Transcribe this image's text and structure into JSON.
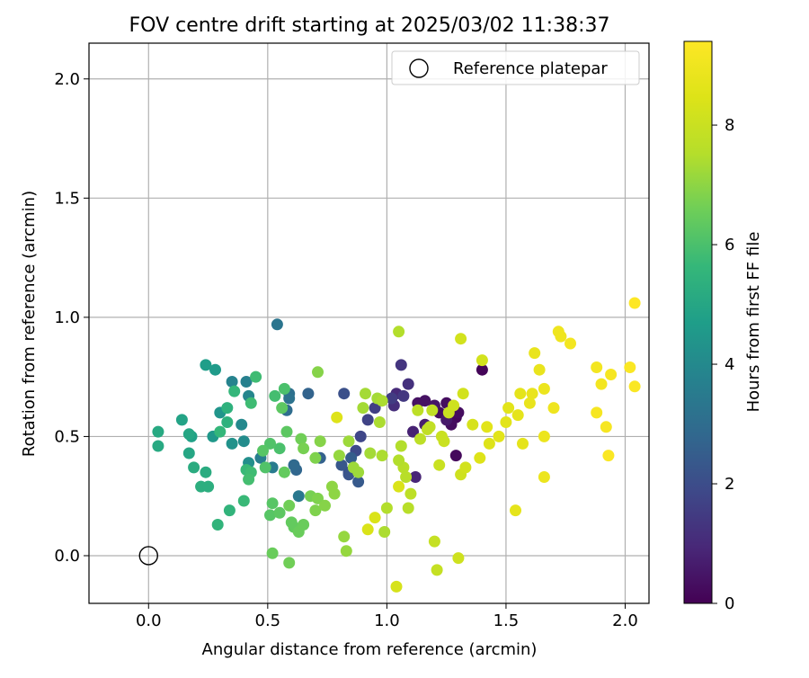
{
  "chart_data": {
    "type": "scatter",
    "title": "FOV centre drift starting at 2025/03/02 11:38:37",
    "xlabel": "Angular distance from reference (arcmin)",
    "ylabel": "Rotation from reference (arcmin)",
    "xlim": [
      -0.25,
      2.1
    ],
    "ylim": [
      -0.2,
      2.15
    ],
    "x_ticks": [
      "0.0",
      "0.5",
      "1.0",
      "1.5",
      "2.0"
    ],
    "y_ticks": [
      "0.0",
      "0.5",
      "1.0",
      "1.5",
      "2.0"
    ],
    "grid": true,
    "legend": {
      "placement": "top-right",
      "entries": [
        "Reference platepar"
      ]
    },
    "reference": {
      "label": "Reference platepar",
      "x": 0.0,
      "y": 0.0
    },
    "colorbar": {
      "label": "Hours from first FF file",
      "colormap": "viridis",
      "range": [
        0,
        9.4
      ],
      "ticks": [
        "0",
        "2",
        "4",
        "6",
        "8"
      ]
    },
    "points": [
      [
        1.4,
        0.78,
        0.1
      ],
      [
        1.29,
        0.42,
        0.2
      ],
      [
        1.29,
        0.58,
        0.2
      ],
      [
        1.3,
        0.6,
        0.3
      ],
      [
        1.27,
        0.55,
        0.3
      ],
      [
        1.22,
        0.6,
        0.3
      ],
      [
        1.25,
        0.64,
        0.3
      ],
      [
        1.13,
        0.64,
        0.4
      ],
      [
        1.16,
        0.65,
        0.4
      ],
      [
        1.2,
        0.63,
        0.5
      ],
      [
        1.25,
        0.57,
        0.6
      ],
      [
        1.16,
        0.55,
        0.7
      ],
      [
        1.11,
        0.52,
        0.8
      ],
      [
        1.12,
        0.33,
        0.9
      ],
      [
        1.04,
        0.68,
        1.0
      ],
      [
        1.03,
        0.63,
        1.1
      ],
      [
        1.09,
        0.72,
        1.2
      ],
      [
        1.06,
        0.8,
        1.3
      ],
      [
        1.07,
        0.67,
        1.4
      ],
      [
        1.02,
        0.66,
        1.5
      ],
      [
        0.95,
        0.62,
        1.6
      ],
      [
        0.92,
        0.57,
        1.7
      ],
      [
        0.89,
        0.5,
        1.8
      ],
      [
        0.87,
        0.44,
        1.9
      ],
      [
        0.84,
        0.35,
        2.0
      ],
      [
        0.82,
        0.68,
        2.1
      ],
      [
        0.84,
        0.34,
        2.2
      ],
      [
        0.81,
        0.38,
        2.3
      ],
      [
        0.88,
        0.31,
        2.4
      ],
      [
        0.85,
        0.41,
        2.5
      ],
      [
        0.72,
        0.41,
        2.6
      ],
      [
        0.67,
        0.68,
        2.7
      ],
      [
        0.62,
        0.36,
        2.8
      ],
      [
        0.61,
        0.38,
        2.9
      ],
      [
        0.58,
        0.61,
        3.0
      ],
      [
        0.59,
        0.68,
        3.1
      ],
      [
        0.59,
        0.66,
        3.2
      ],
      [
        0.54,
        0.97,
        3.3
      ],
      [
        0.63,
        0.25,
        3.4
      ],
      [
        0.52,
        0.37,
        3.5
      ],
      [
        0.47,
        0.41,
        3.6
      ],
      [
        0.41,
        0.73,
        3.7
      ],
      [
        0.35,
        0.73,
        3.8
      ],
      [
        0.42,
        0.67,
        3.9
      ],
      [
        0.39,
        0.55,
        4.0
      ],
      [
        0.4,
        0.48,
        4.1
      ],
      [
        0.42,
        0.39,
        4.2
      ],
      [
        0.35,
        0.47,
        4.3
      ],
      [
        0.3,
        0.6,
        4.4
      ],
      [
        0.27,
        0.5,
        4.5
      ],
      [
        0.28,
        0.78,
        4.6
      ],
      [
        0.24,
        0.8,
        4.7
      ],
      [
        0.18,
        0.5,
        4.8
      ],
      [
        0.14,
        0.57,
        4.9
      ],
      [
        0.17,
        0.51,
        5.0
      ],
      [
        0.17,
        0.43,
        5.0
      ],
      [
        0.04,
        0.52,
        5.1
      ],
      [
        0.04,
        0.46,
        5.1
      ],
      [
        0.19,
        0.37,
        5.2
      ],
      [
        0.24,
        0.35,
        5.2
      ],
      [
        0.22,
        0.29,
        5.3
      ],
      [
        0.25,
        0.29,
        5.3
      ],
      [
        0.33,
        0.56,
        5.4
      ],
      [
        0.33,
        0.62,
        5.4
      ],
      [
        0.34,
        0.19,
        5.5
      ],
      [
        0.29,
        0.13,
        5.5
      ],
      [
        0.3,
        0.52,
        5.6
      ],
      [
        0.36,
        0.69,
        5.6
      ],
      [
        0.4,
        0.23,
        5.7
      ],
      [
        0.41,
        0.36,
        5.7
      ],
      [
        0.43,
        0.35,
        5.8
      ],
      [
        0.43,
        0.64,
        5.8
      ],
      [
        0.45,
        0.75,
        5.8
      ],
      [
        0.42,
        0.32,
        5.9
      ],
      [
        0.53,
        0.67,
        5.9
      ],
      [
        0.55,
        0.45,
        6.0
      ],
      [
        0.57,
        0.7,
        6.0
      ],
      [
        0.49,
        0.37,
        6.1
      ],
      [
        0.51,
        0.47,
        6.1
      ],
      [
        0.48,
        0.44,
        6.2
      ],
      [
        0.52,
        0.22,
        6.2
      ],
      [
        0.51,
        0.17,
        6.2
      ],
      [
        0.55,
        0.18,
        6.3
      ],
      [
        0.56,
        0.62,
        6.3
      ],
      [
        0.58,
        0.52,
        6.3
      ],
      [
        0.57,
        0.35,
        6.4
      ],
      [
        0.6,
        0.14,
        6.4
      ],
      [
        0.61,
        0.12,
        6.4
      ],
      [
        0.63,
        0.1,
        6.5
      ],
      [
        0.65,
        0.13,
        6.5
      ],
      [
        0.52,
        0.01,
        6.5
      ],
      [
        0.59,
        -0.03,
        6.6
      ],
      [
        0.59,
        0.21,
        6.6
      ],
      [
        0.64,
        0.49,
        6.6
      ],
      [
        0.65,
        0.45,
        6.7
      ],
      [
        0.68,
        0.25,
        6.7
      ],
      [
        0.7,
        0.41,
        6.8
      ],
      [
        0.7,
        0.19,
        6.8
      ],
      [
        0.71,
        0.24,
        6.8
      ],
      [
        0.71,
        0.77,
        6.9
      ],
      [
        0.72,
        0.48,
        6.9
      ],
      [
        0.74,
        0.21,
        6.9
      ],
      [
        0.77,
        0.29,
        7.0
      ],
      [
        0.78,
        0.26,
        7.0
      ],
      [
        0.8,
        0.42,
        7.1
      ],
      [
        0.82,
        0.08,
        7.1
      ],
      [
        0.83,
        0.02,
        7.1
      ],
      [
        0.84,
        0.48,
        7.2
      ],
      [
        0.86,
        0.37,
        7.2
      ],
      [
        0.88,
        0.35,
        7.2
      ],
      [
        0.9,
        0.62,
        7.3
      ],
      [
        0.91,
        0.68,
        7.3
      ],
      [
        0.96,
        0.66,
        7.3
      ],
      [
        0.97,
        0.56,
        7.4
      ],
      [
        0.98,
        0.42,
        7.4
      ],
      [
        0.99,
        0.1,
        7.4
      ],
      [
        1.0,
        0.2,
        7.5
      ],
      [
        1.05,
        0.94,
        7.5
      ],
      [
        1.06,
        0.46,
        7.5
      ],
      [
        1.07,
        0.37,
        7.6
      ],
      [
        1.08,
        0.33,
        7.6
      ],
      [
        1.09,
        0.2,
        7.6
      ],
      [
        1.1,
        0.26,
        7.7
      ],
      [
        1.13,
        0.61,
        7.7
      ],
      [
        1.14,
        0.49,
        7.7
      ],
      [
        1.17,
        0.53,
        7.8
      ],
      [
        1.18,
        0.54,
        7.8
      ],
      [
        1.19,
        0.61,
        7.8
      ],
      [
        1.2,
        0.06,
        7.9
      ],
      [
        1.21,
        -0.06,
        7.9
      ],
      [
        1.22,
        0.38,
        8.0
      ],
      [
        1.23,
        0.5,
        8.0
      ],
      [
        1.26,
        0.6,
        8.0
      ],
      [
        1.28,
        0.63,
        8.1
      ],
      [
        1.3,
        -0.01,
        8.1
      ],
      [
        1.31,
        0.34,
        8.1
      ],
      [
        1.32,
        0.68,
        8.2
      ],
      [
        1.31,
        0.91,
        8.2
      ],
      [
        1.4,
        0.82,
        8.2
      ],
      [
        1.36,
        0.55,
        8.3
      ],
      [
        1.04,
        -0.13,
        8.3
      ],
      [
        0.95,
        0.16,
        8.4
      ],
      [
        0.92,
        0.11,
        8.4
      ],
      [
        1.05,
        0.29,
        8.4
      ],
      [
        0.79,
        0.58,
        8.5
      ],
      [
        1.39,
        0.41,
        8.5
      ],
      [
        1.43,
        0.47,
        8.5
      ],
      [
        1.42,
        0.54,
        8.6
      ],
      [
        1.47,
        0.5,
        8.6
      ],
      [
        1.51,
        0.62,
        8.6
      ],
      [
        1.55,
        0.59,
        8.7
      ],
      [
        1.56,
        0.68,
        8.7
      ],
      [
        1.54,
        0.19,
        8.7
      ],
      [
        1.61,
        0.68,
        8.8
      ],
      [
        1.62,
        0.85,
        8.8
      ],
      [
        1.64,
        0.78,
        8.8
      ],
      [
        1.66,
        0.7,
        8.9
      ],
      [
        1.66,
        0.5,
        8.9
      ],
      [
        1.66,
        0.33,
        8.9
      ],
      [
        1.7,
        0.62,
        9.0
      ],
      [
        1.72,
        0.94,
        9.0
      ],
      [
        1.73,
        0.92,
        9.0
      ],
      [
        1.77,
        0.89,
        9.1
      ],
      [
        1.88,
        0.79,
        9.1
      ],
      [
        1.9,
        0.72,
        9.1
      ],
      [
        1.88,
        0.6,
        9.2
      ],
      [
        1.92,
        0.54,
        9.2
      ],
      [
        1.94,
        0.76,
        9.2
      ],
      [
        1.93,
        0.42,
        9.3
      ],
      [
        2.02,
        0.79,
        9.3
      ],
      [
        2.04,
        0.71,
        9.3
      ],
      [
        2.04,
        1.06,
        9.4
      ],
      [
        1.5,
        0.56,
        8.6
      ],
      [
        1.57,
        0.47,
        8.7
      ],
      [
        1.6,
        0.64,
        8.8
      ],
      [
        1.33,
        0.37,
        8.2
      ],
      [
        1.24,
        0.48,
        8.0
      ],
      [
        1.05,
        0.4,
        7.5
      ],
      [
        0.93,
        0.43,
        7.3
      ],
      [
        0.98,
        0.65,
        7.4
      ]
    ]
  }
}
